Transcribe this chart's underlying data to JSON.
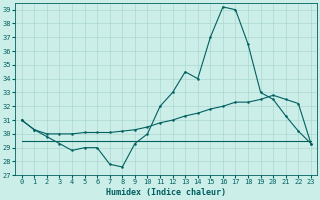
{
  "xlabel": "Humidex (Indice chaleur)",
  "x": [
    0,
    1,
    2,
    3,
    4,
    5,
    6,
    7,
    8,
    9,
    10,
    11,
    12,
    13,
    14,
    15,
    16,
    17,
    18,
    19,
    20,
    21,
    22,
    23
  ],
  "line1": [
    31.0,
    30.3,
    29.8,
    29.3,
    28.8,
    29.0,
    29.0,
    27.8,
    27.6,
    29.3,
    30.0,
    32.0,
    33.0,
    34.5,
    34.0,
    37.0,
    39.2,
    39.0,
    36.5,
    33.0,
    32.5,
    31.3,
    30.2,
    29.3
  ],
  "line2": [
    31.0,
    30.3,
    30.0,
    30.0,
    30.0,
    30.1,
    30.1,
    30.1,
    30.2,
    30.3,
    30.5,
    30.8,
    31.0,
    31.3,
    31.5,
    31.8,
    32.0,
    32.3,
    32.3,
    32.5,
    32.8,
    32.5,
    32.2,
    29.3
  ],
  "line3_x": [
    0,
    23
  ],
  "line3_y": [
    29.5,
    29.5
  ],
  "line_color": "#006060",
  "bg_color": "#cceee8",
  "grid_color": "#aad8d0",
  "ylim": [
    27,
    39.5
  ],
  "yticks": [
    27,
    28,
    29,
    30,
    31,
    32,
    33,
    34,
    35,
    36,
    37,
    38,
    39
  ],
  "xticks": [
    0,
    1,
    2,
    3,
    4,
    5,
    6,
    7,
    8,
    9,
    10,
    11,
    12,
    13,
    14,
    15,
    16,
    17,
    18,
    19,
    20,
    21,
    22,
    23
  ]
}
